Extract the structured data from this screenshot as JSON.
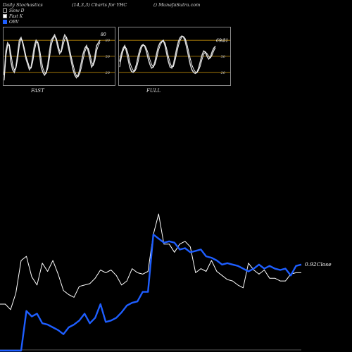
{
  "header": {
    "title": "Daily Stochastics",
    "params": "(14,3,3) Charts for YHC",
    "site": "() MunafaSutra.com"
  },
  "legend": {
    "items": [
      {
        "label": "Slow D",
        "swatch": "outline"
      },
      {
        "label": "Fast K",
        "swatch": "white"
      },
      {
        "label": "OBV",
        "swatch": "blue"
      }
    ]
  },
  "colors": {
    "line_primary": "#ffffff",
    "line_obv": "#1e5eff",
    "guide": "#b8860b",
    "background": "#000000"
  },
  "chart_data": [
    {
      "type": "line",
      "name": "FAST",
      "label": "FAST",
      "ylim": [
        0,
        100
      ],
      "levels": [
        20,
        50,
        80
      ],
      "level_labels": [
        "20",
        "50",
        "80"
      ],
      "end_label": "80",
      "series": [
        {
          "values": [
            15,
            60,
            75,
            70,
            40,
            25,
            20,
            30,
            55,
            80,
            85,
            75,
            60,
            45,
            35,
            25,
            30,
            50,
            70,
            80,
            75,
            55,
            30,
            20,
            15,
            20,
            35,
            60,
            80,
            85,
            90,
            80,
            65,
            55,
            60,
            80,
            90,
            85,
            70,
            55,
            40,
            25,
            15,
            10,
            15,
            25,
            40,
            55,
            65,
            70,
            60,
            45,
            30,
            35,
            50,
            70,
            75,
            80
          ]
        },
        {
          "values": [
            5,
            50,
            70,
            72,
            55,
            35,
            25,
            28,
            45,
            70,
            82,
            78,
            65,
            50,
            40,
            30,
            28,
            40,
            60,
            75,
            77,
            65,
            45,
            28,
            20,
            18,
            28,
            48,
            70,
            82,
            87,
            84,
            72,
            60,
            58,
            70,
            82,
            86,
            78,
            62,
            48,
            35,
            22,
            14,
            12,
            18,
            30,
            45,
            58,
            67,
            65,
            55,
            40,
            33,
            42,
            60,
            70,
            76
          ]
        }
      ]
    },
    {
      "type": "line",
      "name": "FULL",
      "label": "FULL",
      "ylim": [
        0,
        100
      ],
      "levels": [
        20,
        50,
        80
      ],
      "level_labels": [
        "20",
        "50",
        "80"
      ],
      "end_label": "69.31",
      "series": [
        {
          "values": [
            40,
            55,
            65,
            70,
            60,
            45,
            30,
            22,
            20,
            25,
            35,
            50,
            62,
            70,
            72,
            68,
            58,
            45,
            35,
            28,
            30,
            40,
            55,
            68,
            75,
            78,
            80,
            70,
            55,
            40,
            30,
            28,
            35,
            50,
            65,
            78,
            85,
            88,
            86,
            78,
            65,
            50,
            35,
            25,
            20,
            18,
            20,
            28,
            40,
            52,
            60,
            58,
            50,
            45,
            48,
            58,
            65,
            69
          ]
        },
        {
          "values": [
            30,
            48,
            60,
            68,
            65,
            55,
            40,
            30,
            24,
            22,
            28,
            40,
            55,
            66,
            71,
            70,
            64,
            55,
            44,
            35,
            30,
            35,
            46,
            60,
            70,
            76,
            79,
            75,
            64,
            50,
            38,
            30,
            31,
            42,
            56,
            70,
            80,
            86,
            87,
            83,
            74,
            60,
            46,
            34,
            26,
            21,
            20,
            24,
            32,
            44,
            54,
            58,
            55,
            50,
            47,
            52,
            60,
            66
          ]
        }
      ]
    },
    {
      "type": "line",
      "name": "main",
      "end_label": "0.92Close",
      "series": [
        {
          "values": [
            34,
            34,
            30,
            42,
            66,
            69,
            54,
            48,
            64,
            58,
            66,
            56,
            44,
            41,
            39,
            47,
            48,
            49,
            53,
            59,
            57,
            59,
            55,
            48,
            51,
            60,
            57,
            56,
            58,
            85,
            100,
            78,
            78,
            72,
            78,
            80,
            76,
            57,
            60,
            58,
            66,
            58,
            55,
            52,
            51,
            48,
            46,
            64,
            59,
            56,
            59,
            53,
            53,
            51,
            51,
            56,
            57,
            57
          ]
        },
        {
          "values": [
            0,
            0,
            0,
            0,
            0,
            29,
            25,
            27,
            20,
            19,
            17,
            15,
            12,
            17,
            19,
            22,
            27,
            20,
            24,
            34,
            21,
            22,
            24,
            28,
            33,
            35,
            36,
            43,
            43,
            85,
            82,
            79,
            80,
            79,
            74,
            75,
            72,
            73,
            74,
            69,
            68,
            66,
            63,
            64,
            63,
            62,
            60,
            58,
            60,
            63,
            60,
            62,
            60,
            59,
            60,
            55,
            62,
            63
          ]
        }
      ]
    }
  ]
}
